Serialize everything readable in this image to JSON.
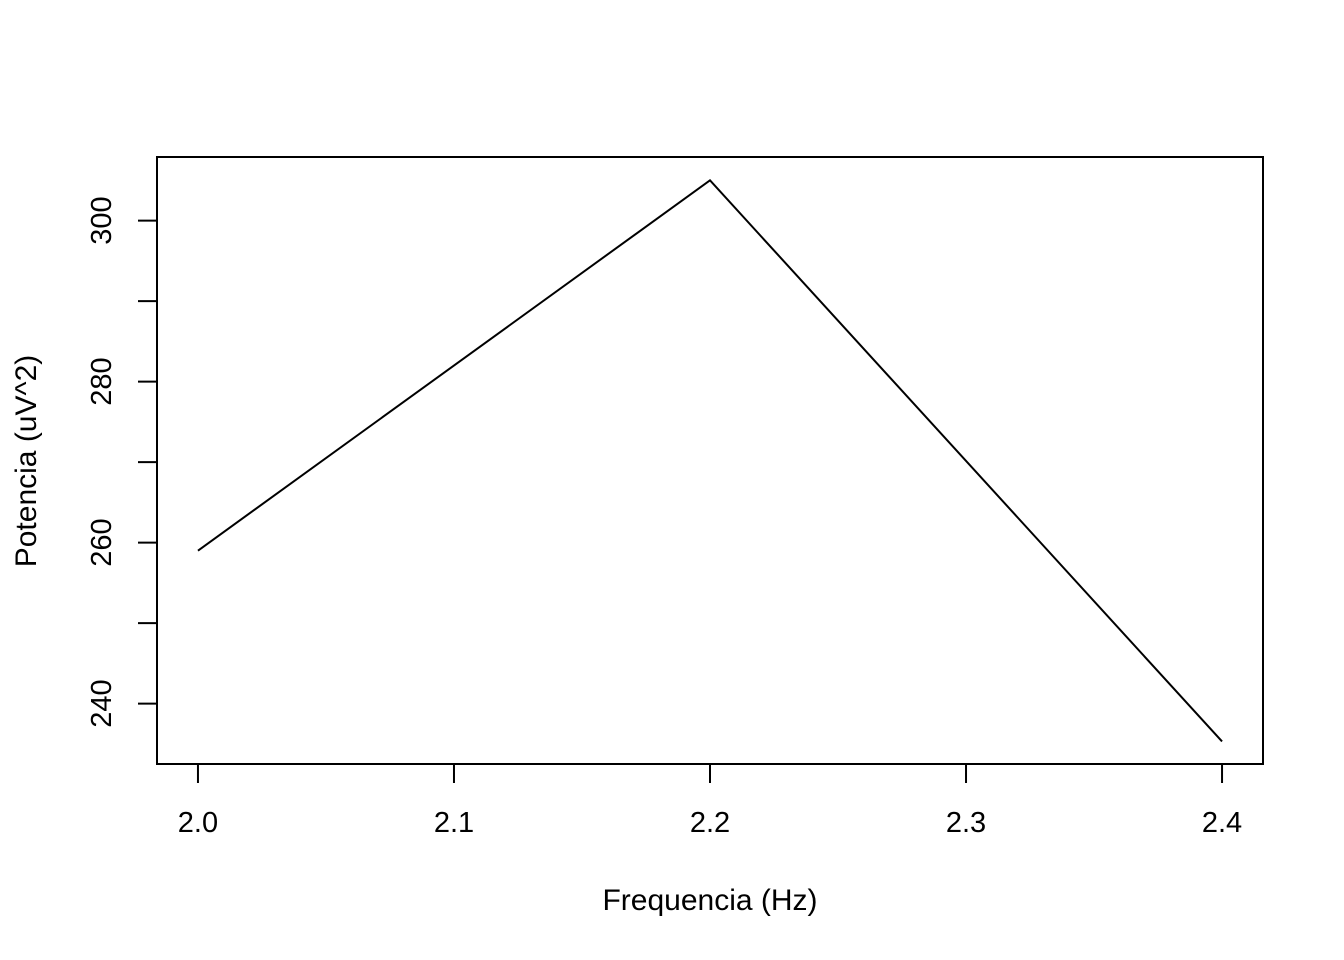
{
  "chart_data": {
    "type": "line",
    "title": "",
    "xlabel": "Frequencia (Hz)",
    "ylabel": "Potencia (uV^2)",
    "x": [
      2.0,
      2.2,
      2.4
    ],
    "y": [
      259,
      305,
      235.3
    ],
    "xlim": [
      1.984,
      2.416
    ],
    "ylim": [
      232.5,
      307.9
    ],
    "x_ticks": [
      2.0,
      2.1,
      2.2,
      2.3,
      2.4
    ],
    "x_tick_labels": [
      "2.0",
      "2.1",
      "2.2",
      "2.3",
      "2.4"
    ],
    "y_ticks": [
      240,
      250,
      260,
      270,
      280,
      290,
      300
    ],
    "y_tick_labels": [
      "240",
      "",
      "260",
      "",
      "280",
      "",
      "300"
    ],
    "grid": false,
    "legend": "none",
    "line_color": "#000000"
  }
}
